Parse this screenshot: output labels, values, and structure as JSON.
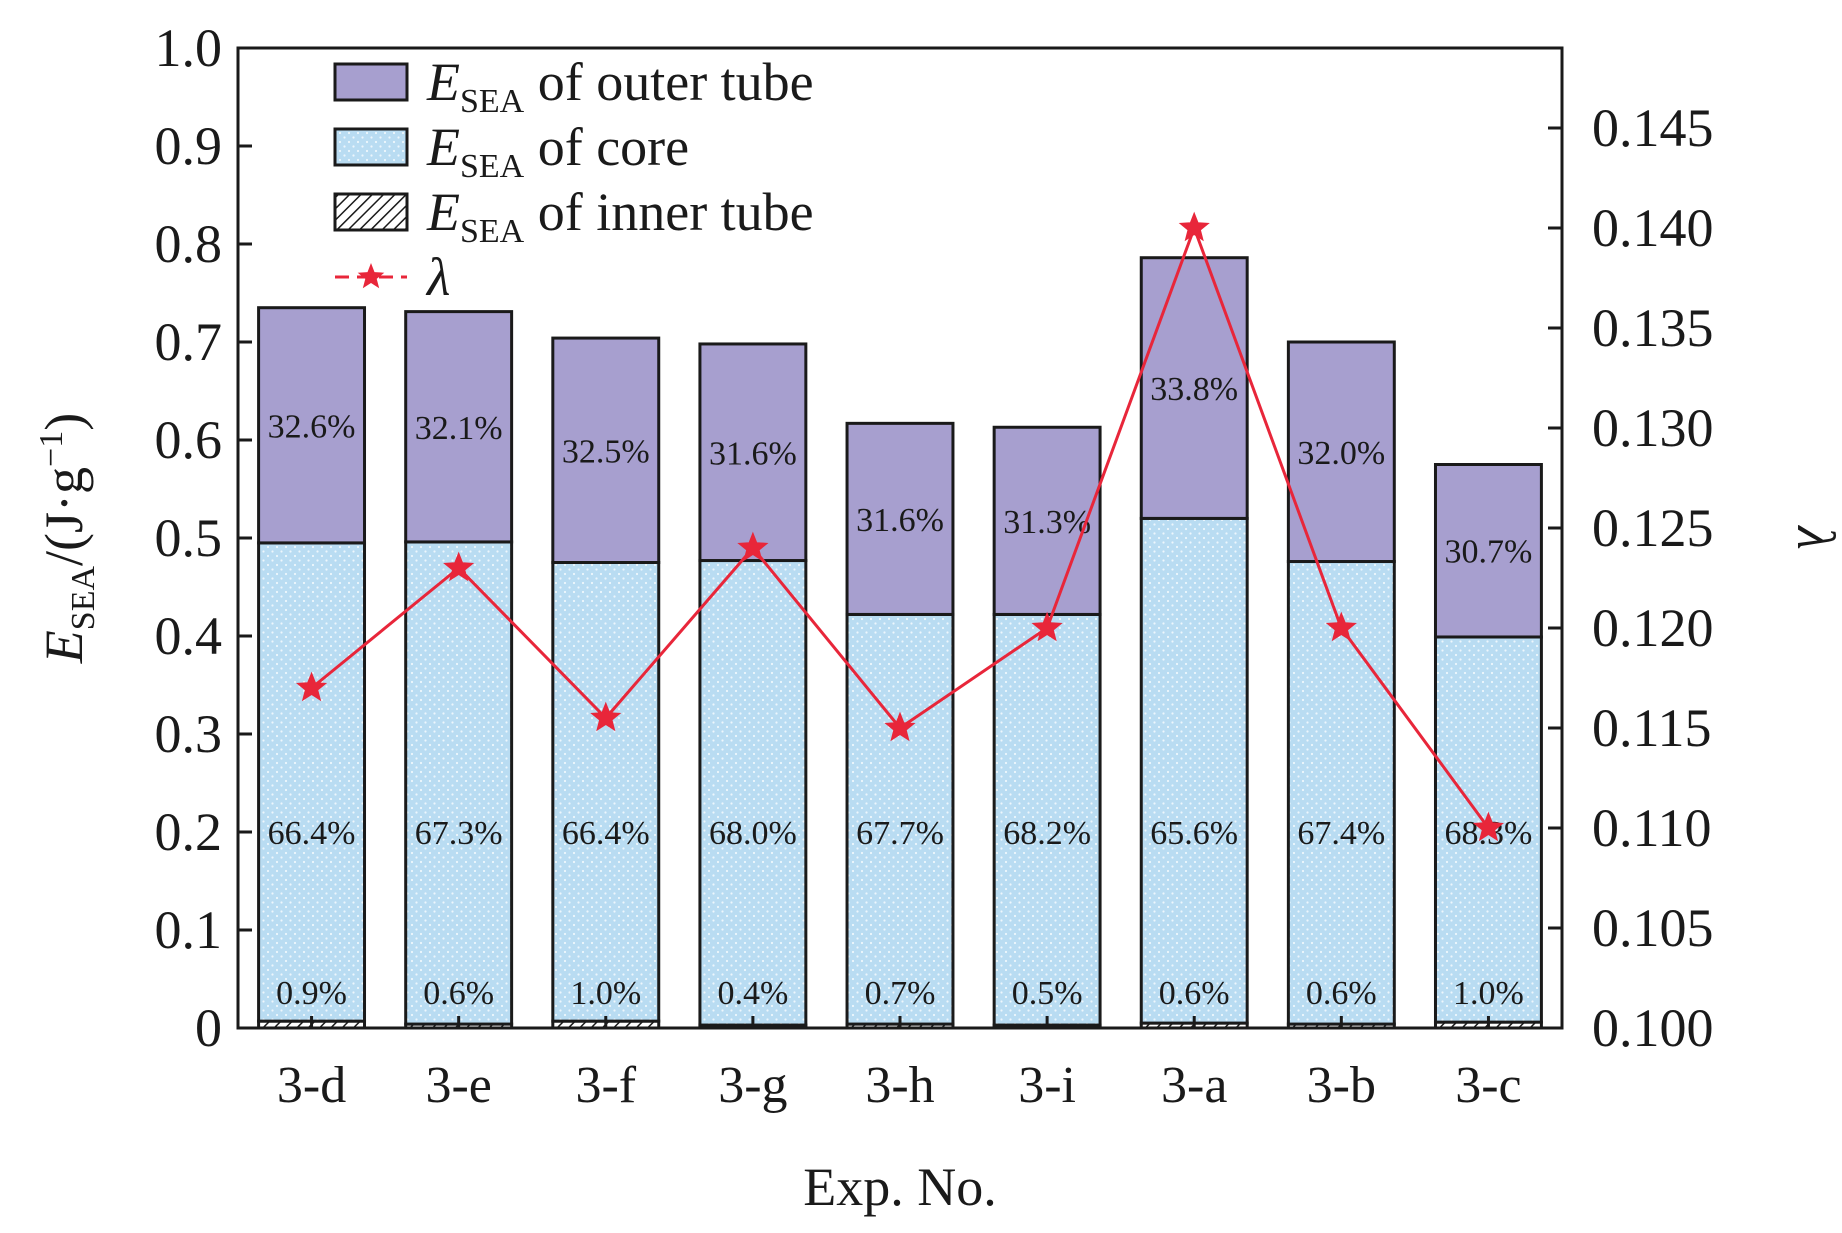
{
  "chart_data": {
    "type": "bar",
    "subtype": "stacked-bar-with-line",
    "categories": [
      "3-d",
      "3-e",
      "3-f",
      "3-g",
      "3-h",
      "3-i",
      "3-a",
      "3-b",
      "3-c"
    ],
    "series": [
      {
        "name": "E_SEA of inner tube",
        "legend_main": "E",
        "legend_sub": "SEA",
        "legend_rest": " of inner tube",
        "axis": "left",
        "values": [
          0.007,
          0.004,
          0.007,
          0.003,
          0.004,
          0.003,
          0.005,
          0.004,
          0.006
        ],
        "labels": [
          "0.9%",
          "0.6%",
          "1.0%",
          "0.4%",
          "0.7%",
          "0.5%",
          "0.6%",
          "0.6%",
          "1.0%"
        ],
        "color": "#d8d8d8"
      },
      {
        "name": "E_SEA of core",
        "legend_main": "E",
        "legend_sub": "SEA",
        "legend_rest": " of core",
        "axis": "left",
        "values": [
          0.488,
          0.492,
          0.468,
          0.474,
          0.418,
          0.419,
          0.515,
          0.472,
          0.393
        ],
        "labels": [
          "66.4%",
          "67.3%",
          "66.4%",
          "68.0%",
          "67.7%",
          "68.2%",
          "65.6%",
          "67.4%",
          "68.3%"
        ],
        "color": "#b9dcf2"
      },
      {
        "name": "E_SEA of outer tube",
        "legend_main": "E",
        "legend_sub": "SEA",
        "legend_rest": " of outer tube",
        "axis": "left",
        "values": [
          0.24,
          0.235,
          0.229,
          0.221,
          0.195,
          0.191,
          0.266,
          0.224,
          0.176
        ],
        "labels": [
          "32.6%",
          "32.1%",
          "32.5%",
          "31.6%",
          "31.6%",
          "31.3%",
          "33.8%",
          "32.0%",
          "30.7%"
        ],
        "color": "#a79fcf"
      },
      {
        "name": "λ",
        "legend_main": "λ",
        "axis": "right",
        "type": "line",
        "marker": "star",
        "values": [
          0.117,
          0.123,
          0.1155,
          0.124,
          0.115,
          0.12,
          0.14,
          0.12,
          0.11
        ],
        "color": "#e8263a"
      }
    ],
    "legend_order": [
      2,
      1,
      0,
      3
    ],
    "xlabel": "Exp. No.",
    "ylabel": {
      "main": "E",
      "sub": "SEA",
      "rest": "/(J·g",
      "sup": "−1",
      "close": ")"
    },
    "y2label": "λ",
    "ylim": [
      0,
      1.0
    ],
    "yticks": [
      "0",
      "0.1",
      "0.2",
      "0.3",
      "0.4",
      "0.5",
      "0.6",
      "0.7",
      "0.8",
      "0.9",
      "1.0"
    ],
    "y2lim": [
      0.1,
      0.149
    ],
    "y2ticks": [
      "0.100",
      "0.105",
      "0.110",
      "0.115",
      "0.120",
      "0.125",
      "0.130",
      "0.135",
      "0.140",
      "0.145"
    ],
    "legend_position": "top-left",
    "grid": false
  }
}
